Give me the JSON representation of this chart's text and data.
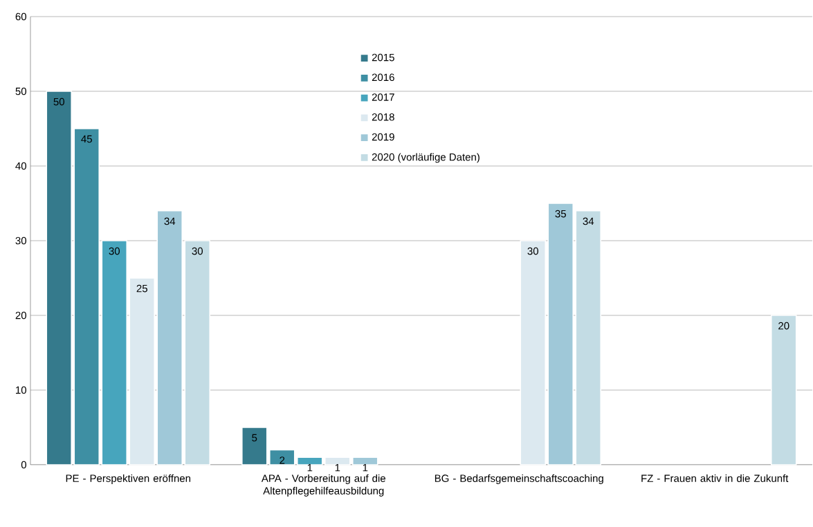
{
  "chart_data": {
    "type": "bar",
    "categories": [
      "PE - Perspektiven eröffnen",
      "APA - Vorbereitung auf die Altenpflegehilfeausbildung",
      "BG - Bedarfsgemeinschaftscoaching",
      "FZ - Frauen aktiv in die Zukunft"
    ],
    "series": [
      {
        "name": "2015",
        "color": "#357a8c",
        "values": [
          50,
          5,
          null,
          null
        ]
      },
      {
        "name": "2016",
        "color": "#3e8fa3",
        "values": [
          45,
          2,
          null,
          null
        ]
      },
      {
        "name": "2017",
        "color": "#47a5bd",
        "values": [
          30,
          1,
          null,
          null
        ]
      },
      {
        "name": "2018",
        "color": "#dce9f0",
        "values": [
          25,
          1,
          30,
          null
        ]
      },
      {
        "name": "2019",
        "color": "#9fc8d8",
        "values": [
          34,
          1,
          35,
          null
        ]
      },
      {
        "name": "2020 (vorläufige Daten)",
        "color": "#c3dce4",
        "values": [
          30,
          null,
          34,
          20
        ]
      }
    ],
    "ylim": [
      0,
      60
    ],
    "yticks": [
      0,
      10,
      20,
      30,
      40,
      50,
      60
    ],
    "grid": "y",
    "legend": "top",
    "data_labels": true
  }
}
